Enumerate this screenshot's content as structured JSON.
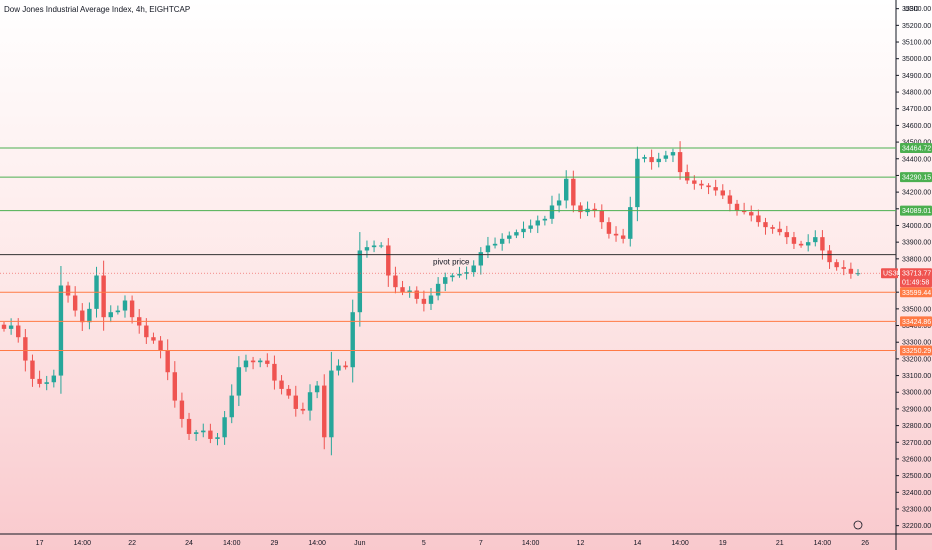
{
  "chart_title": "Dow Jones Industrial Average Index, 4h, EIGHTCAP",
  "colors": {
    "up": "#26a69a",
    "down": "#ef5350",
    "resistance": "#4caf50",
    "support": "#ff7a45",
    "pivot": "#333333",
    "symbol_badge": "#ef5350"
  },
  "chart_data": {
    "type": "candlestick",
    "title": "Dow Jones Industrial Average Index, 4h, EIGHTCAP",
    "y_axis": {
      "unit": "USD",
      "range": [
        32150,
        35340
      ],
      "ticks": [
        32200,
        32300,
        32400,
        32500,
        32600,
        32700,
        32800,
        32900,
        33000,
        33100,
        33200,
        33300,
        33400,
        33500,
        33600,
        33700,
        33800,
        33900,
        34000,
        34100,
        34200,
        34300,
        34400,
        34500,
        34600,
        34700,
        34800,
        34900,
        35000,
        35100,
        35200,
        35300
      ],
      "tick_labels": [
        "32200.00",
        "32300.00",
        "32400.00",
        "32500.00",
        "32600.00",
        "32700.00",
        "32800.00",
        "32900.00",
        "33000.00",
        "33100.00",
        "33200.00",
        "33300.00",
        "33400.00",
        "33500.00",
        "33600.00",
        "33700.00",
        "33800.00",
        "33900.00",
        "34000.00",
        "34100.00",
        "34200.00",
        "34300.00",
        "34400.00",
        "34500.00",
        "34600.00",
        "34700.00",
        "34800.00",
        "34900.00",
        "35000.00",
        "35100.00",
        "35200.00",
        "35300.00"
      ]
    },
    "x_axis": {
      "labels": [
        "17",
        "14:00",
        "22",
        "24",
        "14:00",
        "29",
        "14:00",
        "Jun",
        "5",
        "7",
        "14:00",
        "12",
        "14",
        "14:00",
        "19",
        "21",
        "14:00",
        "26"
      ],
      "label_bar_index": [
        5,
        11,
        18,
        26,
        32,
        38,
        44,
        50,
        59,
        67,
        74,
        81,
        89,
        95,
        101,
        109,
        115,
        121
      ]
    },
    "levels": [
      {
        "kind": "resistance",
        "value": 34464.72,
        "label": "34464.72"
      },
      {
        "kind": "resistance",
        "value": 34290.15,
        "label": "34290.15"
      },
      {
        "kind": "resistance",
        "value": 34089.01,
        "label": "34089.01"
      },
      {
        "kind": "pivot",
        "value": 33825,
        "label": "pivot price"
      },
      {
        "kind": "support",
        "value": 33599.44,
        "label": "33599.44"
      },
      {
        "kind": "support",
        "value": 33424.86,
        "label": "33424.86"
      },
      {
        "kind": "support",
        "value": 33250.29,
        "label": "33250.29"
      }
    ],
    "current": {
      "symbol": "US30",
      "price": 33713.77,
      "price_label": "33713.77",
      "countdown": "01:49:58"
    },
    "closes": [
      33380,
      33400,
      33330,
      33190,
      33080,
      33050,
      33060,
      33100,
      33640,
      33580,
      33490,
      33420,
      33500,
      33700,
      33450,
      33480,
      33490,
      33550,
      33450,
      33400,
      33330,
      33310,
      33250,
      33120,
      32950,
      32840,
      32750,
      32760,
      32770,
      32720,
      32730,
      32850,
      32980,
      33150,
      33190,
      33180,
      33190,
      33170,
      33070,
      33020,
      32980,
      32900,
      32890,
      33000,
      33040,
      32730,
      33130,
      33160,
      33150,
      33480,
      33850,
      33870,
      33880,
      33880,
      33700,
      33630,
      33600,
      33610,
      33560,
      33530,
      33580,
      33650,
      33690,
      33700,
      33710,
      33720,
      33760,
      33840,
      33880,
      33890,
      33920,
      33940,
      33960,
      33980,
      34000,
      34030,
      34040,
      34120,
      34150,
      34280,
      34120,
      34080,
      34100,
      34090,
      34020,
      33950,
      33940,
      33920,
      34110,
      34400,
      34410,
      34380,
      34400,
      34420,
      34440,
      34320,
      34270,
      34250,
      34240,
      34230,
      34210,
      34180,
      34130,
      34090,
      34080,
      34060,
      34020,
      33990,
      33980,
      33960,
      33930,
      33890,
      33880,
      33900,
      33930,
      33850,
      33780,
      33750,
      33740,
      33710,
      33713.77
    ]
  }
}
